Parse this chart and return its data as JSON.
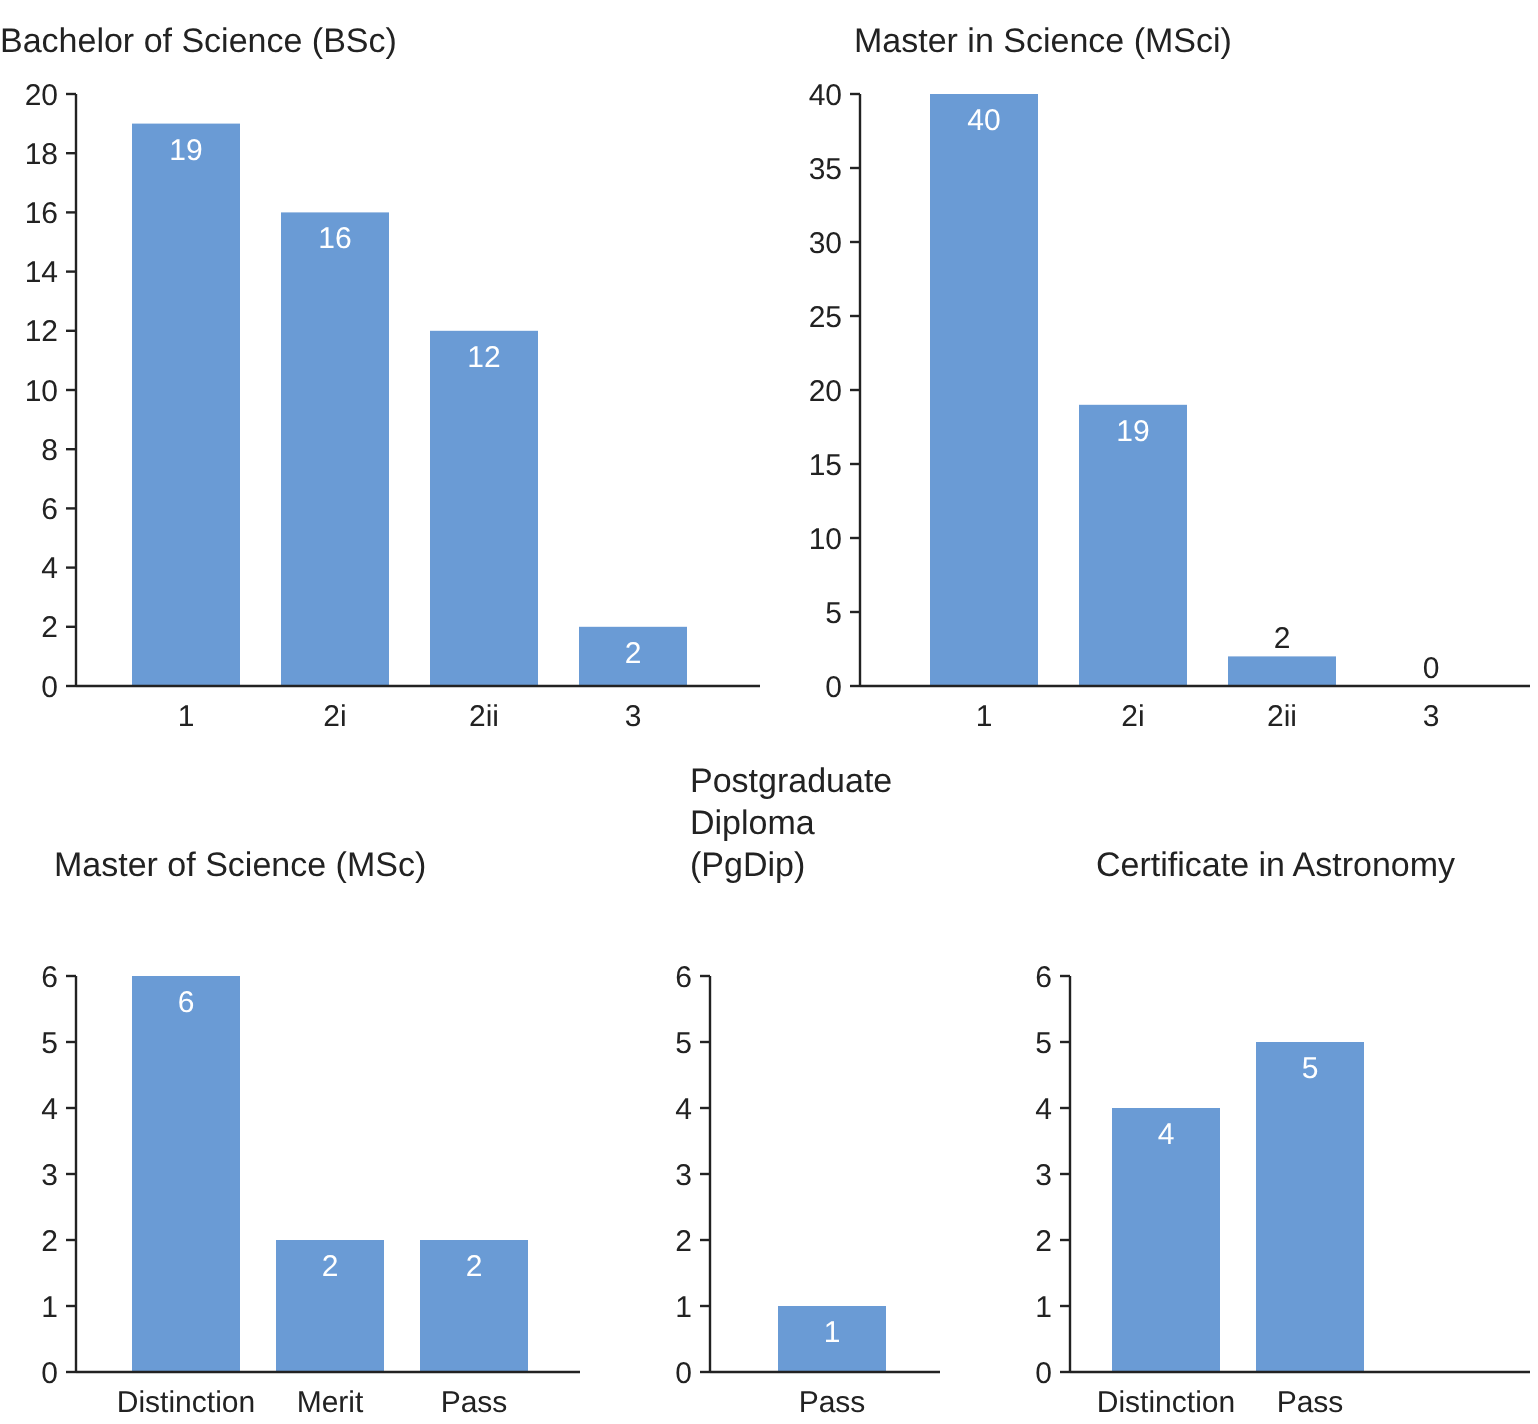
{
  "chart_data": [
    {
      "type": "bar",
      "title": "Bachelor of Science (BSc)",
      "categories": [
        "1",
        "2i",
        "2ii",
        "3"
      ],
      "values": [
        19,
        16,
        12,
        2
      ],
      "color": "#6a9bd5",
      "ylim": [
        0,
        20
      ],
      "yticks": [
        0,
        2,
        4,
        6,
        8,
        10,
        12,
        14,
        16,
        18,
        20
      ],
      "data_labels": true
    },
    {
      "type": "bar",
      "title": "Master in Science (MSci)",
      "categories": [
        "1",
        "2i",
        "2ii",
        "3"
      ],
      "values": [
        40,
        19,
        2,
        0
      ],
      "color": "#6a9bd5",
      "ylim": [
        0,
        40
      ],
      "yticks": [
        0,
        5,
        10,
        15,
        20,
        25,
        30,
        35,
        40
      ],
      "data_labels": true
    },
    {
      "type": "bar",
      "title": "Master of Science (MSc)",
      "categories": [
        "Distinction",
        "Merit",
        "Pass"
      ],
      "values": [
        6,
        2,
        2
      ],
      "color": "#6a9bd5",
      "ylim": [
        0,
        6
      ],
      "yticks": [
        0,
        1,
        2,
        3,
        4,
        5,
        6
      ],
      "data_labels": true
    },
    {
      "type": "bar",
      "title": "Postgraduate Diploma (PgDip)",
      "categories": [
        "Pass"
      ],
      "values": [
        1
      ],
      "color": "#6a9bd5",
      "ylim": [
        0,
        6
      ],
      "yticks": [
        0,
        1,
        2,
        3,
        4,
        5,
        6
      ],
      "data_labels": true
    },
    {
      "type": "bar",
      "title": "Certificate in Astronomy",
      "categories": [
        "Distinction",
        "Pass"
      ],
      "values": [
        4,
        5
      ],
      "color": "#6a9bd5",
      "ylim": [
        0,
        6
      ],
      "yticks": [
        0,
        1,
        2,
        3,
        4,
        5,
        6
      ],
      "data_labels": true
    }
  ]
}
